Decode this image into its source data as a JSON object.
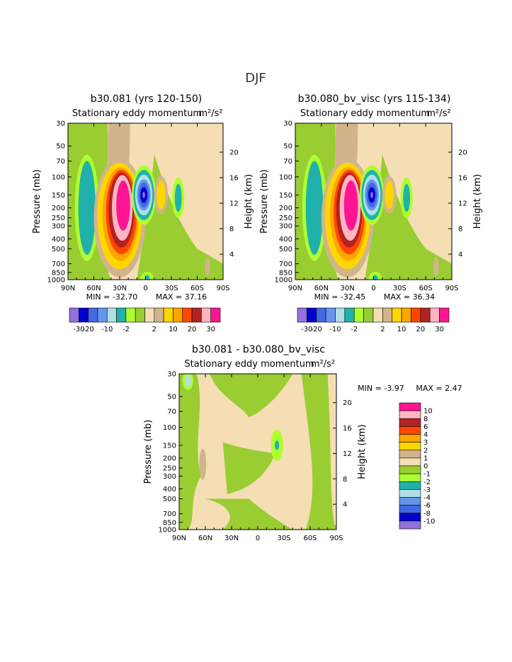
{
  "page": {
    "title": "DJF",
    "colors": {
      "bg": "#ffffff",
      "frame": "#000000"
    }
  },
  "chart_data": [
    {
      "type": "contour",
      "title": "b30.081 (yrs 120-150)",
      "subtitle": "Stationary eddy momentum",
      "units": "m²/s²",
      "xlabel": "",
      "ylabel": "Pressure (mb)",
      "ylabel_right": "Height (km)",
      "x_ticks": [
        "90N",
        "60N",
        "30N",
        "0",
        "30S",
        "60S",
        "90S"
      ],
      "y_ticks": [
        "30",
        "50",
        "70",
        "100",
        "150",
        "200",
        "250",
        "300",
        "400",
        "500",
        "700",
        "850",
        "1000"
      ],
      "y2_ticks": [
        "20",
        "16",
        "12",
        "8",
        "4"
      ],
      "min_label": "MIN = -32.70",
      "max_label": "MAX = 37.16",
      "min": -32.7,
      "max": 37.16,
      "colorbar": {
        "labels": [
          "-30",
          "-20",
          "-10",
          "-2",
          "2",
          "10",
          "20",
          "30"
        ],
        "colors": [
          "#9370db",
          "#0000cd",
          "#4169e1",
          "#6495ed",
          "#b0e0e6",
          "#20b2aa",
          "#adff2f",
          "#9acd32",
          "#f5deb3",
          "#d2b48c",
          "#ffd700",
          "#ffa500",
          "#ff4500",
          "#b22222",
          "#ffb6c1",
          "#ff1493"
        ]
      }
    },
    {
      "type": "contour",
      "title": "b30.080_bv_visc (yrs 115-134)",
      "subtitle": "Stationary eddy momentum",
      "units": "m²/s²",
      "xlabel": "",
      "ylabel": "Pressure (mb)",
      "ylabel_right": "Height (km)",
      "x_ticks": [
        "90N",
        "60N",
        "30N",
        "0",
        "30S",
        "60S",
        "90S"
      ],
      "y_ticks": [
        "30",
        "50",
        "70",
        "100",
        "150",
        "200",
        "250",
        "300",
        "400",
        "500",
        "700",
        "850",
        "1000"
      ],
      "y2_ticks": [
        "20",
        "16",
        "12",
        "8",
        "4"
      ],
      "min_label": "MIN = -32.45",
      "max_label": "MAX = 36.34",
      "min": -32.45,
      "max": 36.34,
      "colorbar": {
        "labels": [
          "-30",
          "-20",
          "-10",
          "-2",
          "2",
          "10",
          "20",
          "30"
        ],
        "colors": [
          "#9370db",
          "#0000cd",
          "#4169e1",
          "#6495ed",
          "#b0e0e6",
          "#20b2aa",
          "#adff2f",
          "#9acd32",
          "#f5deb3",
          "#d2b48c",
          "#ffd700",
          "#ffa500",
          "#ff4500",
          "#b22222",
          "#ffb6c1",
          "#ff1493"
        ]
      }
    },
    {
      "type": "contour",
      "title": "b30.081 - b30.080_bv_visc",
      "subtitle": "Stationary eddy momentum",
      "units": "m²/s²",
      "xlabel": "",
      "ylabel": "Pressure (mb)",
      "ylabel_right": "Height (km)",
      "x_ticks": [
        "90N",
        "60N",
        "30N",
        "0",
        "30S",
        "60S",
        "90S"
      ],
      "y_ticks": [
        "30",
        "50",
        "70",
        "100",
        "150",
        "200",
        "250",
        "300",
        "400",
        "500",
        "700",
        "850",
        "1000"
      ],
      "y2_ticks": [
        "20",
        "16",
        "12",
        "8",
        "4"
      ],
      "min_label": "MIN = -3.97",
      "max_label": "MAX = 2.47",
      "min": -3.97,
      "max": 2.47,
      "colorbar": {
        "labels": [
          "10",
          "8",
          "6",
          "4",
          "3",
          "2",
          "1",
          "0",
          "-1",
          "-2",
          "-3",
          "-4",
          "-6",
          "-8",
          "-10"
        ],
        "colors": [
          "#ff1493",
          "#ffb6c1",
          "#b22222",
          "#ff4500",
          "#ffa500",
          "#ffd700",
          "#d2b48c",
          "#f5deb3",
          "#9acd32",
          "#adff2f",
          "#20b2aa",
          "#b0e0e6",
          "#6495ed",
          "#4169e1",
          "#0000cd",
          "#9370db"
        ]
      }
    }
  ]
}
